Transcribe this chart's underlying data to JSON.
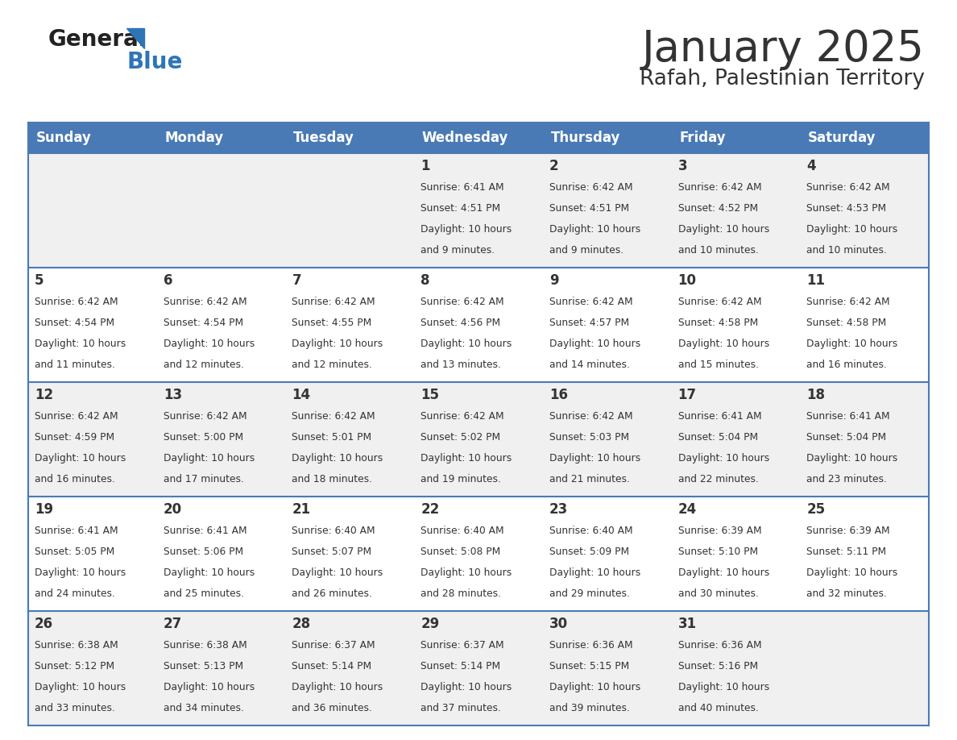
{
  "title": "January 2025",
  "subtitle": "Rafah, Palestinian Territory",
  "header_color": "#4a7ab5",
  "header_text_color": "#FFFFFF",
  "cell_bg_odd": "#f0f0f0",
  "cell_bg_even": "#FFFFFF",
  "border_color": "#4a7ab5",
  "text_color": "#333333",
  "day_names": [
    "Sunday",
    "Monday",
    "Tuesday",
    "Wednesday",
    "Thursday",
    "Friday",
    "Saturday"
  ],
  "days": [
    {
      "day": 1,
      "col": 3,
      "row": 0,
      "sunrise": "6:41 AM",
      "sunset": "4:51 PM",
      "daylight": "10 hours and 9 minutes."
    },
    {
      "day": 2,
      "col": 4,
      "row": 0,
      "sunrise": "6:42 AM",
      "sunset": "4:51 PM",
      "daylight": "10 hours and 9 minutes."
    },
    {
      "day": 3,
      "col": 5,
      "row": 0,
      "sunrise": "6:42 AM",
      "sunset": "4:52 PM",
      "daylight": "10 hours and 10 minutes."
    },
    {
      "day": 4,
      "col": 6,
      "row": 0,
      "sunrise": "6:42 AM",
      "sunset": "4:53 PM",
      "daylight": "10 hours and 10 minutes."
    },
    {
      "day": 5,
      "col": 0,
      "row": 1,
      "sunrise": "6:42 AM",
      "sunset": "4:54 PM",
      "daylight": "10 hours and 11 minutes."
    },
    {
      "day": 6,
      "col": 1,
      "row": 1,
      "sunrise": "6:42 AM",
      "sunset": "4:54 PM",
      "daylight": "10 hours and 12 minutes."
    },
    {
      "day": 7,
      "col": 2,
      "row": 1,
      "sunrise": "6:42 AM",
      "sunset": "4:55 PM",
      "daylight": "10 hours and 12 minutes."
    },
    {
      "day": 8,
      "col": 3,
      "row": 1,
      "sunrise": "6:42 AM",
      "sunset": "4:56 PM",
      "daylight": "10 hours and 13 minutes."
    },
    {
      "day": 9,
      "col": 4,
      "row": 1,
      "sunrise": "6:42 AM",
      "sunset": "4:57 PM",
      "daylight": "10 hours and 14 minutes."
    },
    {
      "day": 10,
      "col": 5,
      "row": 1,
      "sunrise": "6:42 AM",
      "sunset": "4:58 PM",
      "daylight": "10 hours and 15 minutes."
    },
    {
      "day": 11,
      "col": 6,
      "row": 1,
      "sunrise": "6:42 AM",
      "sunset": "4:58 PM",
      "daylight": "10 hours and 16 minutes."
    },
    {
      "day": 12,
      "col": 0,
      "row": 2,
      "sunrise": "6:42 AM",
      "sunset": "4:59 PM",
      "daylight": "10 hours and 16 minutes."
    },
    {
      "day": 13,
      "col": 1,
      "row": 2,
      "sunrise": "6:42 AM",
      "sunset": "5:00 PM",
      "daylight": "10 hours and 17 minutes."
    },
    {
      "day": 14,
      "col": 2,
      "row": 2,
      "sunrise": "6:42 AM",
      "sunset": "5:01 PM",
      "daylight": "10 hours and 18 minutes."
    },
    {
      "day": 15,
      "col": 3,
      "row": 2,
      "sunrise": "6:42 AM",
      "sunset": "5:02 PM",
      "daylight": "10 hours and 19 minutes."
    },
    {
      "day": 16,
      "col": 4,
      "row": 2,
      "sunrise": "6:42 AM",
      "sunset": "5:03 PM",
      "daylight": "10 hours and 21 minutes."
    },
    {
      "day": 17,
      "col": 5,
      "row": 2,
      "sunrise": "6:41 AM",
      "sunset": "5:04 PM",
      "daylight": "10 hours and 22 minutes."
    },
    {
      "day": 18,
      "col": 6,
      "row": 2,
      "sunrise": "6:41 AM",
      "sunset": "5:04 PM",
      "daylight": "10 hours and 23 minutes."
    },
    {
      "day": 19,
      "col": 0,
      "row": 3,
      "sunrise": "6:41 AM",
      "sunset": "5:05 PM",
      "daylight": "10 hours and 24 minutes."
    },
    {
      "day": 20,
      "col": 1,
      "row": 3,
      "sunrise": "6:41 AM",
      "sunset": "5:06 PM",
      "daylight": "10 hours and 25 minutes."
    },
    {
      "day": 21,
      "col": 2,
      "row": 3,
      "sunrise": "6:40 AM",
      "sunset": "5:07 PM",
      "daylight": "10 hours and 26 minutes."
    },
    {
      "day": 22,
      "col": 3,
      "row": 3,
      "sunrise": "6:40 AM",
      "sunset": "5:08 PM",
      "daylight": "10 hours and 28 minutes."
    },
    {
      "day": 23,
      "col": 4,
      "row": 3,
      "sunrise": "6:40 AM",
      "sunset": "5:09 PM",
      "daylight": "10 hours and 29 minutes."
    },
    {
      "day": 24,
      "col": 5,
      "row": 3,
      "sunrise": "6:39 AM",
      "sunset": "5:10 PM",
      "daylight": "10 hours and 30 minutes."
    },
    {
      "day": 25,
      "col": 6,
      "row": 3,
      "sunrise": "6:39 AM",
      "sunset": "5:11 PM",
      "daylight": "10 hours and 32 minutes."
    },
    {
      "day": 26,
      "col": 0,
      "row": 4,
      "sunrise": "6:38 AM",
      "sunset": "5:12 PM",
      "daylight": "10 hours and 33 minutes."
    },
    {
      "day": 27,
      "col": 1,
      "row": 4,
      "sunrise": "6:38 AM",
      "sunset": "5:13 PM",
      "daylight": "10 hours and 34 minutes."
    },
    {
      "day": 28,
      "col": 2,
      "row": 4,
      "sunrise": "6:37 AM",
      "sunset": "5:14 PM",
      "daylight": "10 hours and 36 minutes."
    },
    {
      "day": 29,
      "col": 3,
      "row": 4,
      "sunrise": "6:37 AM",
      "sunset": "5:14 PM",
      "daylight": "10 hours and 37 minutes."
    },
    {
      "day": 30,
      "col": 4,
      "row": 4,
      "sunrise": "6:36 AM",
      "sunset": "5:15 PM",
      "daylight": "10 hours and 39 minutes."
    },
    {
      "day": 31,
      "col": 5,
      "row": 4,
      "sunrise": "6:36 AM",
      "sunset": "5:16 PM",
      "daylight": "10 hours and 40 minutes."
    }
  ],
  "logo_general_color": "#222222",
  "logo_blue_color": "#2E75B6",
  "logo_triangle_color": "#2E75B6",
  "title_fontsize": 38,
  "subtitle_fontsize": 19,
  "header_fontsize": 12,
  "day_number_fontsize": 12,
  "cell_text_fontsize": 8.8,
  "fig_width": 11.88,
  "fig_height": 9.18,
  "dpi": 100
}
